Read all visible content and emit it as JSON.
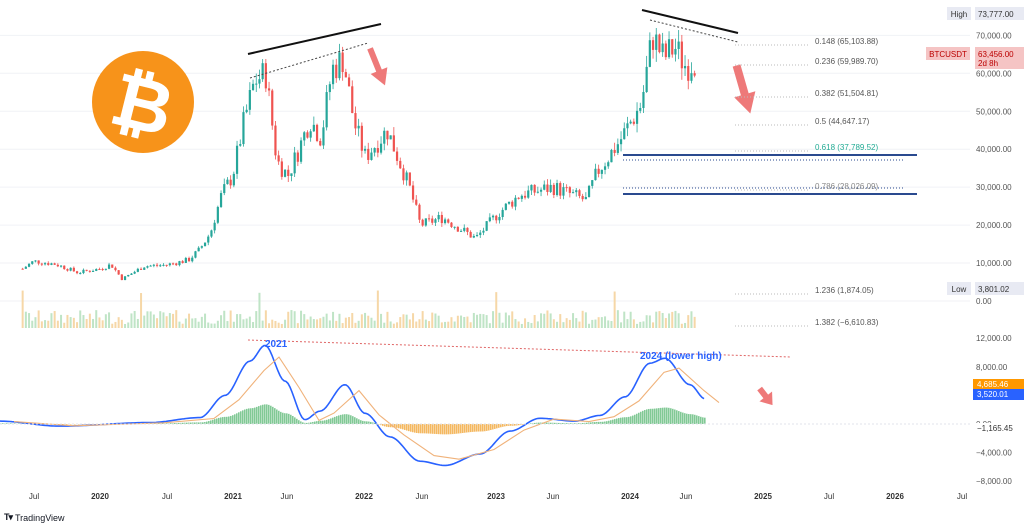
{
  "chart_data": [
    {
      "type": "candlestick",
      "symbol": "BTCUSDT",
      "last_price": "63,456.00",
      "countdown": "2d 8h",
      "high_label": "High",
      "high_value": "73,777.00",
      "low_label": "Low",
      "low_value": "3,801.02",
      "price_ticks": [
        "70,000.00",
        "60,000.00",
        "50,000.00",
        "40,000.00",
        "30,000.00",
        "20,000.00",
        "10,000.00",
        "0.00"
      ],
      "time_ticks": [
        "Jul",
        "2020",
        "Jul",
        "2021",
        "Jun",
        "2022",
        "Jun",
        "2023",
        "Jun",
        "2024",
        "Jun",
        "2025",
        "Jul",
        "2026",
        "Jul"
      ],
      "fibonacci_levels": [
        {
          "label": "0.148 (65,103.88)",
          "color": "#555555"
        },
        {
          "label": "0.236 (59,989.70)",
          "color": "#555555"
        },
        {
          "label": "0.382 (51,504.81)",
          "color": "#555555"
        },
        {
          "label": "0.5 (44,647.17)",
          "color": "#555555"
        },
        {
          "label": "0.618 (37,789.52)",
          "color": "#22ab94"
        },
        {
          "label": "0.786 (28,026.09)",
          "color": "#888888"
        },
        {
          "label": "1.236 (1,874.05)",
          "color": "#555555"
        },
        {
          "label": "1.382 (−6,610.83)",
          "color": "#555555"
        }
      ],
      "weekly_close_approx": [
        [
          "2019-06",
          8500
        ],
        [
          "2019-07",
          10500
        ],
        [
          "2019-09",
          9700
        ],
        [
          "2019-11",
          7500
        ],
        [
          "2020-01",
          8500
        ],
        [
          "2020-02",
          9600
        ],
        [
          "2020-03",
          5800
        ],
        [
          "2020-05",
          9200
        ],
        [
          "2020-07",
          9500
        ],
        [
          "2020-09",
          10800
        ],
        [
          "2020-10",
          13500
        ],
        [
          "2020-11",
          18000
        ],
        [
          "2020-12",
          28000
        ],
        [
          "2021-01",
          33000
        ],
        [
          "2021-02",
          47000
        ],
        [
          "2021-03",
          58000
        ],
        [
          "2021-04",
          60000
        ],
        [
          "2021-05",
          37000
        ],
        [
          "2021-06",
          33000
        ],
        [
          "2021-07",
          40000
        ],
        [
          "2021-08",
          48000
        ],
        [
          "2021-09",
          43000
        ],
        [
          "2021-10",
          61000
        ],
        [
          "2021-11",
          64000
        ],
        [
          "2021-12",
          47000
        ],
        [
          "2022-01",
          38000
        ],
        [
          "2022-03",
          45000
        ],
        [
          "2022-05",
          30000
        ],
        [
          "2022-06",
          20000
        ],
        [
          "2022-08",
          22000
        ],
        [
          "2022-11",
          16500
        ],
        [
          "2023-01",
          23000
        ],
        [
          "2023-03",
          28000
        ],
        [
          "2023-06",
          30000
        ],
        [
          "2023-09",
          26500
        ],
        [
          "2023-10",
          34000
        ],
        [
          "2023-12",
          42000
        ],
        [
          "2024-02",
          52000
        ],
        [
          "2024-03",
          70000
        ],
        [
          "2024-04",
          64000
        ],
        [
          "2024-05",
          67000
        ],
        [
          "2024-06",
          62000
        ],
        [
          "2024-07",
          63456
        ]
      ],
      "macd_panel": {
        "ticks": [
          "12,000.00",
          "8,000.00",
          "4,000.00",
          "0.00",
          "−4,000.00",
          "−8,000.00"
        ],
        "annotations": [
          "2021",
          "2024 (lower high)"
        ],
        "value_badges": [
          {
            "label": "4,685.46",
            "color": "#ff9800"
          },
          {
            "label": "3,520.01",
            "color": "#2962ff"
          },
          {
            "label": "−1,165.45",
            "color": "#ffffff"
          }
        ]
      },
      "brand": "TradingView",
      "colors": {
        "up": "#26a69a",
        "down": "#ef5350",
        "fib_support": "#2a4a8f",
        "arrow": "#ec6a6a",
        "bitcoin": "#f7931a"
      }
    }
  ]
}
